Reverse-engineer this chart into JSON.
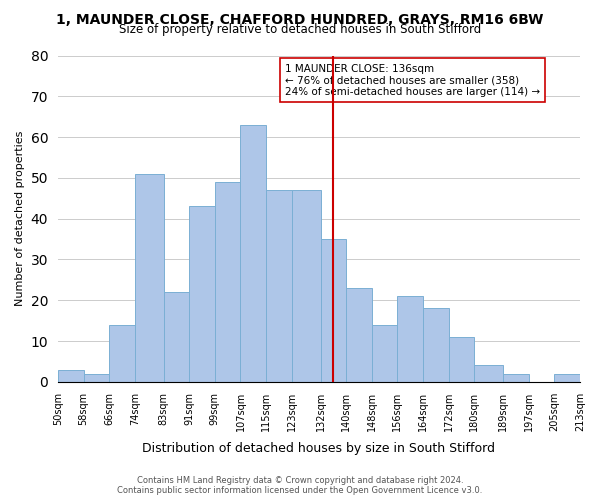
{
  "title": "1, MAUNDER CLOSE, CHAFFORD HUNDRED, GRAYS, RM16 6BW",
  "subtitle": "Size of property relative to detached houses in South Stifford",
  "xlabel": "Distribution of detached houses by size in South Stifford",
  "ylabel": "Number of detached properties",
  "footer1": "Contains HM Land Registry data © Crown copyright and database right 2024.",
  "footer2": "Contains public sector information licensed under the Open Government Licence v3.0.",
  "bin_labels": [
    "50sqm",
    "58sqm",
    "66sqm",
    "74sqm",
    "83sqm",
    "91sqm",
    "99sqm",
    "107sqm",
    "115sqm",
    "123sqm",
    "132sqm",
    "140sqm",
    "148sqm",
    "156sqm",
    "164sqm",
    "172sqm",
    "180sqm",
    "189sqm",
    "197sqm",
    "205sqm",
    "213sqm"
  ],
  "bar_heights": [
    3,
    2,
    14,
    51,
    22,
    43,
    49,
    63,
    47,
    47,
    35,
    23,
    14,
    21,
    18,
    11,
    4,
    2,
    0,
    2
  ],
  "bin_edges": [
    50,
    58,
    66,
    74,
    83,
    91,
    99,
    107,
    115,
    123,
    132,
    140,
    148,
    156,
    164,
    172,
    180,
    189,
    197,
    205,
    213
  ],
  "bar_color": "#aec6e8",
  "bar_edge_color": "#7bafd4",
  "vline_x": 136,
  "vline_color": "#cc0000",
  "annotation_title": "1 MAUNDER CLOSE: 136sqm",
  "annotation_line1": "← 76% of detached houses are smaller (358)",
  "annotation_line2": "24% of semi-detached houses are larger (114) →",
  "ylim": [
    0,
    80
  ],
  "yticks": [
    0,
    10,
    20,
    30,
    40,
    50,
    60,
    70,
    80
  ],
  "background_color": "#ffffff",
  "grid_color": "#cccccc"
}
